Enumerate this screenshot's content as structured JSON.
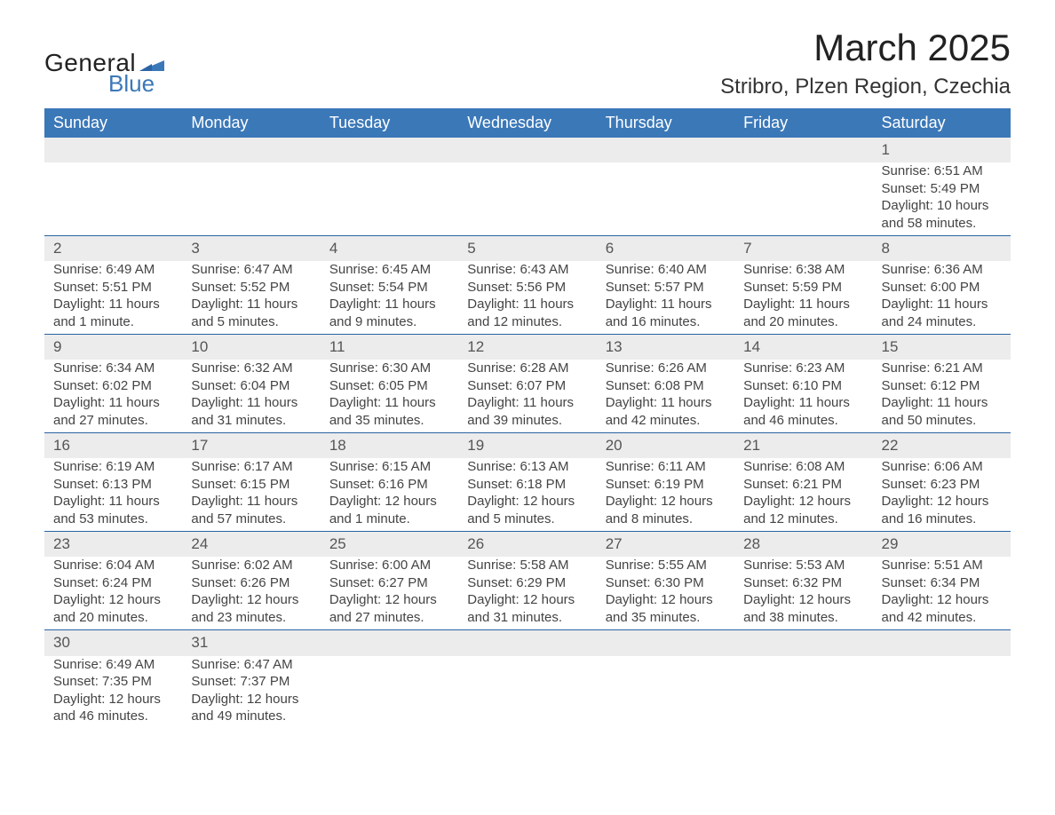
{
  "brand": {
    "word1": "General",
    "word2": "Blue",
    "flag_color": "#3b78b8"
  },
  "title": "March 2025",
  "location": "Stribro, Plzen Region, Czechia",
  "colors": {
    "header_bg": "#3b78b8",
    "header_text": "#ffffff",
    "daynum_bg": "#ececec",
    "row_border": "#2b64a4",
    "body_text": "#444444",
    "page_bg": "#ffffff"
  },
  "weekdays": [
    "Sunday",
    "Monday",
    "Tuesday",
    "Wednesday",
    "Thursday",
    "Friday",
    "Saturday"
  ],
  "weeks": [
    [
      null,
      null,
      null,
      null,
      null,
      null,
      {
        "n": "1",
        "sr": "Sunrise: 6:51 AM",
        "ss": "Sunset: 5:49 PM",
        "d1": "Daylight: 10 hours",
        "d2": "and 58 minutes."
      }
    ],
    [
      {
        "n": "2",
        "sr": "Sunrise: 6:49 AM",
        "ss": "Sunset: 5:51 PM",
        "d1": "Daylight: 11 hours",
        "d2": "and 1 minute."
      },
      {
        "n": "3",
        "sr": "Sunrise: 6:47 AM",
        "ss": "Sunset: 5:52 PM",
        "d1": "Daylight: 11 hours",
        "d2": "and 5 minutes."
      },
      {
        "n": "4",
        "sr": "Sunrise: 6:45 AM",
        "ss": "Sunset: 5:54 PM",
        "d1": "Daylight: 11 hours",
        "d2": "and 9 minutes."
      },
      {
        "n": "5",
        "sr": "Sunrise: 6:43 AM",
        "ss": "Sunset: 5:56 PM",
        "d1": "Daylight: 11 hours",
        "d2": "and 12 minutes."
      },
      {
        "n": "6",
        "sr": "Sunrise: 6:40 AM",
        "ss": "Sunset: 5:57 PM",
        "d1": "Daylight: 11 hours",
        "d2": "and 16 minutes."
      },
      {
        "n": "7",
        "sr": "Sunrise: 6:38 AM",
        "ss": "Sunset: 5:59 PM",
        "d1": "Daylight: 11 hours",
        "d2": "and 20 minutes."
      },
      {
        "n": "8",
        "sr": "Sunrise: 6:36 AM",
        "ss": "Sunset: 6:00 PM",
        "d1": "Daylight: 11 hours",
        "d2": "and 24 minutes."
      }
    ],
    [
      {
        "n": "9",
        "sr": "Sunrise: 6:34 AM",
        "ss": "Sunset: 6:02 PM",
        "d1": "Daylight: 11 hours",
        "d2": "and 27 minutes."
      },
      {
        "n": "10",
        "sr": "Sunrise: 6:32 AM",
        "ss": "Sunset: 6:04 PM",
        "d1": "Daylight: 11 hours",
        "d2": "and 31 minutes."
      },
      {
        "n": "11",
        "sr": "Sunrise: 6:30 AM",
        "ss": "Sunset: 6:05 PM",
        "d1": "Daylight: 11 hours",
        "d2": "and 35 minutes."
      },
      {
        "n": "12",
        "sr": "Sunrise: 6:28 AM",
        "ss": "Sunset: 6:07 PM",
        "d1": "Daylight: 11 hours",
        "d2": "and 39 minutes."
      },
      {
        "n": "13",
        "sr": "Sunrise: 6:26 AM",
        "ss": "Sunset: 6:08 PM",
        "d1": "Daylight: 11 hours",
        "d2": "and 42 minutes."
      },
      {
        "n": "14",
        "sr": "Sunrise: 6:23 AM",
        "ss": "Sunset: 6:10 PM",
        "d1": "Daylight: 11 hours",
        "d2": "and 46 minutes."
      },
      {
        "n": "15",
        "sr": "Sunrise: 6:21 AM",
        "ss": "Sunset: 6:12 PM",
        "d1": "Daylight: 11 hours",
        "d2": "and 50 minutes."
      }
    ],
    [
      {
        "n": "16",
        "sr": "Sunrise: 6:19 AM",
        "ss": "Sunset: 6:13 PM",
        "d1": "Daylight: 11 hours",
        "d2": "and 53 minutes."
      },
      {
        "n": "17",
        "sr": "Sunrise: 6:17 AM",
        "ss": "Sunset: 6:15 PM",
        "d1": "Daylight: 11 hours",
        "d2": "and 57 minutes."
      },
      {
        "n": "18",
        "sr": "Sunrise: 6:15 AM",
        "ss": "Sunset: 6:16 PM",
        "d1": "Daylight: 12 hours",
        "d2": "and 1 minute."
      },
      {
        "n": "19",
        "sr": "Sunrise: 6:13 AM",
        "ss": "Sunset: 6:18 PM",
        "d1": "Daylight: 12 hours",
        "d2": "and 5 minutes."
      },
      {
        "n": "20",
        "sr": "Sunrise: 6:11 AM",
        "ss": "Sunset: 6:19 PM",
        "d1": "Daylight: 12 hours",
        "d2": "and 8 minutes."
      },
      {
        "n": "21",
        "sr": "Sunrise: 6:08 AM",
        "ss": "Sunset: 6:21 PM",
        "d1": "Daylight: 12 hours",
        "d2": "and 12 minutes."
      },
      {
        "n": "22",
        "sr": "Sunrise: 6:06 AM",
        "ss": "Sunset: 6:23 PM",
        "d1": "Daylight: 12 hours",
        "d2": "and 16 minutes."
      }
    ],
    [
      {
        "n": "23",
        "sr": "Sunrise: 6:04 AM",
        "ss": "Sunset: 6:24 PM",
        "d1": "Daylight: 12 hours",
        "d2": "and 20 minutes."
      },
      {
        "n": "24",
        "sr": "Sunrise: 6:02 AM",
        "ss": "Sunset: 6:26 PM",
        "d1": "Daylight: 12 hours",
        "d2": "and 23 minutes."
      },
      {
        "n": "25",
        "sr": "Sunrise: 6:00 AM",
        "ss": "Sunset: 6:27 PM",
        "d1": "Daylight: 12 hours",
        "d2": "and 27 minutes."
      },
      {
        "n": "26",
        "sr": "Sunrise: 5:58 AM",
        "ss": "Sunset: 6:29 PM",
        "d1": "Daylight: 12 hours",
        "d2": "and 31 minutes."
      },
      {
        "n": "27",
        "sr": "Sunrise: 5:55 AM",
        "ss": "Sunset: 6:30 PM",
        "d1": "Daylight: 12 hours",
        "d2": "and 35 minutes."
      },
      {
        "n": "28",
        "sr": "Sunrise: 5:53 AM",
        "ss": "Sunset: 6:32 PM",
        "d1": "Daylight: 12 hours",
        "d2": "and 38 minutes."
      },
      {
        "n": "29",
        "sr": "Sunrise: 5:51 AM",
        "ss": "Sunset: 6:34 PM",
        "d1": "Daylight: 12 hours",
        "d2": "and 42 minutes."
      }
    ],
    [
      {
        "n": "30",
        "sr": "Sunrise: 6:49 AM",
        "ss": "Sunset: 7:35 PM",
        "d1": "Daylight: 12 hours",
        "d2": "and 46 minutes."
      },
      {
        "n": "31",
        "sr": "Sunrise: 6:47 AM",
        "ss": "Sunset: 7:37 PM",
        "d1": "Daylight: 12 hours",
        "d2": "and 49 minutes."
      },
      null,
      null,
      null,
      null,
      null
    ]
  ]
}
